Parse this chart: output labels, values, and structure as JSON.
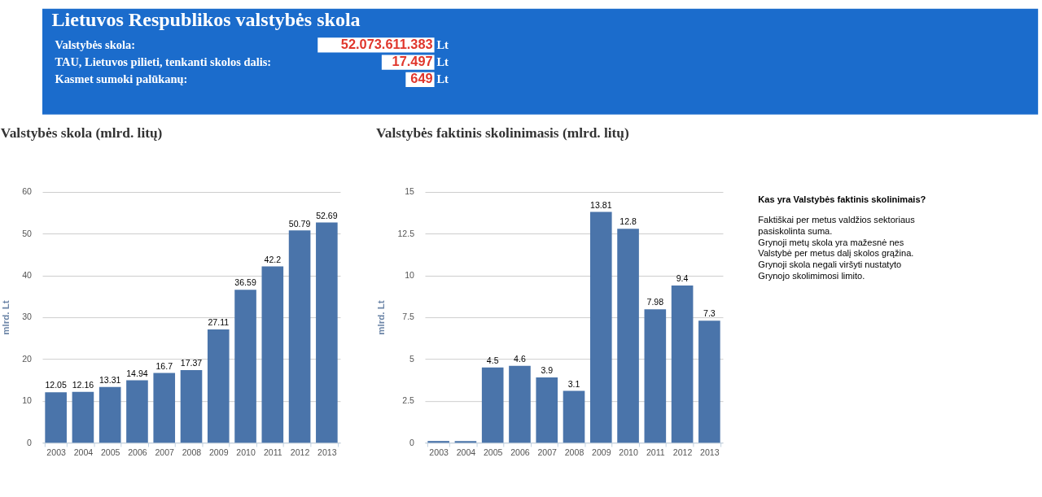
{
  "chart_data": [
    {
      "type": "other",
      "title": "Lietuvos Respublikos valstybės skola",
      "annotations": [
        "Valstybės skola:",
        "52.073.611.383",
        "Lt",
        "TAU, Lietuvos pilieti, tenkanti skolos dalis:",
        "17.497",
        "Lt",
        "Kasmet sumoki palūkanų:",
        "649",
        "Lt"
      ]
    },
    {
      "type": "bar",
      "title": "Valstybės skola (mlrd. litų)",
      "ylabel": "mlrd. Lt",
      "categories": [
        "2003",
        "2004",
        "2005",
        "2006",
        "2007",
        "2008",
        "2009",
        "2010",
        "2011",
        "2012",
        "2013"
      ],
      "values": [
        12.05,
        12.16,
        13.31,
        14.94,
        16.7,
        17.37,
        27.11,
        36.59,
        42.2,
        50.79,
        52.69
      ],
      "color": "#4a74aa",
      "ylim": [
        0,
        60
      ],
      "yticks": [
        0,
        10,
        20,
        30,
        40,
        50,
        60
      ],
      "grid": "y",
      "data_labels": true
    },
    {
      "type": "bar",
      "title": "Valstybės faktinis skolinimasis (mlrd. litų)",
      "ylabel": "mlrd. Lt",
      "categories": [
        "2003",
        "2004",
        "2005",
        "2006",
        "2007",
        "2008",
        "2009",
        "2010",
        "2011",
        "2012",
        "2013"
      ],
      "values": [
        0.1,
        0.1,
        4.5,
        4.6,
        3.9,
        3.1,
        13.81,
        12.8,
        7.98,
        9.4,
        7.3
      ],
      "value_labels": [
        null,
        null,
        "4.5",
        "4.6",
        "3.9",
        "3.1",
        "13.81",
        "12.8",
        "7.98",
        "9.4",
        "7.3"
      ],
      "color": "#4a74aa",
      "ylim": [
        0,
        15
      ],
      "yticks": [
        0,
        2.5,
        5,
        7.5,
        10,
        12.5,
        15
      ],
      "grid": "y"
    },
    {
      "type": "other",
      "title": "Kas yra Valstybės faktinis skolinimais?",
      "annotations": [
        "Faktiškai per metus valdžios sektoriaus",
        "pasiskolinta suma.",
        "Grynoji metų skola yra mažesnė nes",
        "Valstybė per metus dalį skolos grąžina.",
        "Grynoji skola negali viršyti nustatyto",
        "Grynojo skolimimosi limito."
      ]
    }
  ]
}
